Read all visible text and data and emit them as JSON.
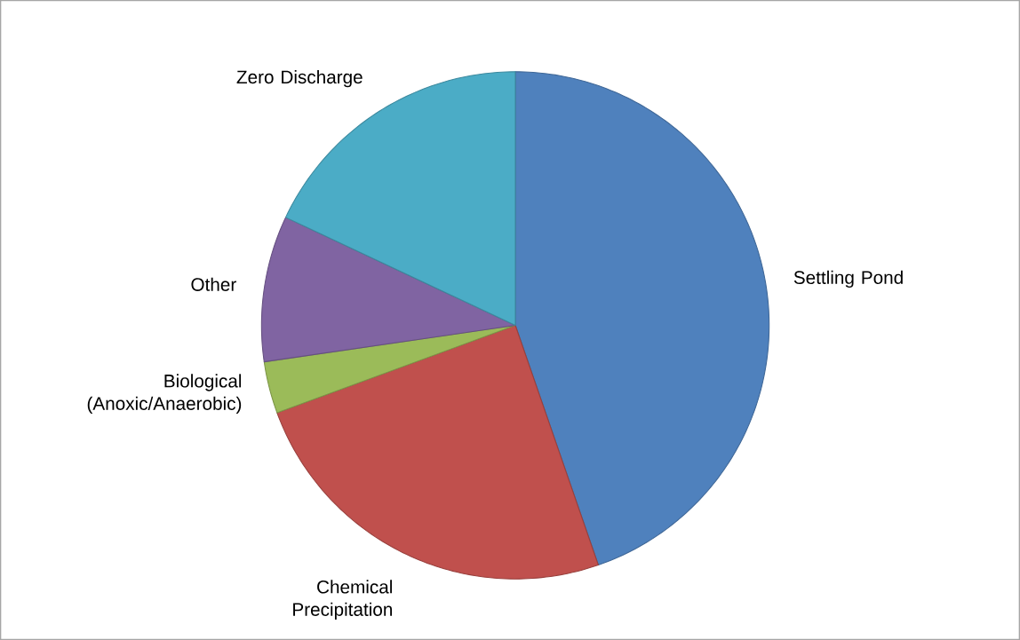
{
  "chart_data": {
    "type": "pie",
    "categories": [
      "Settling Pond",
      "Chemical Precipitation",
      "Biological (Anoxic/Anaerobic)",
      "Other",
      "Zero Discharge"
    ],
    "values": [
      44.7,
      24.7,
      3.3,
      9.3,
      18.0
    ],
    "colors": [
      "#4f81bd",
      "#c0504d",
      "#9bbb59",
      "#8064a2",
      "#4bacc6"
    ]
  }
}
